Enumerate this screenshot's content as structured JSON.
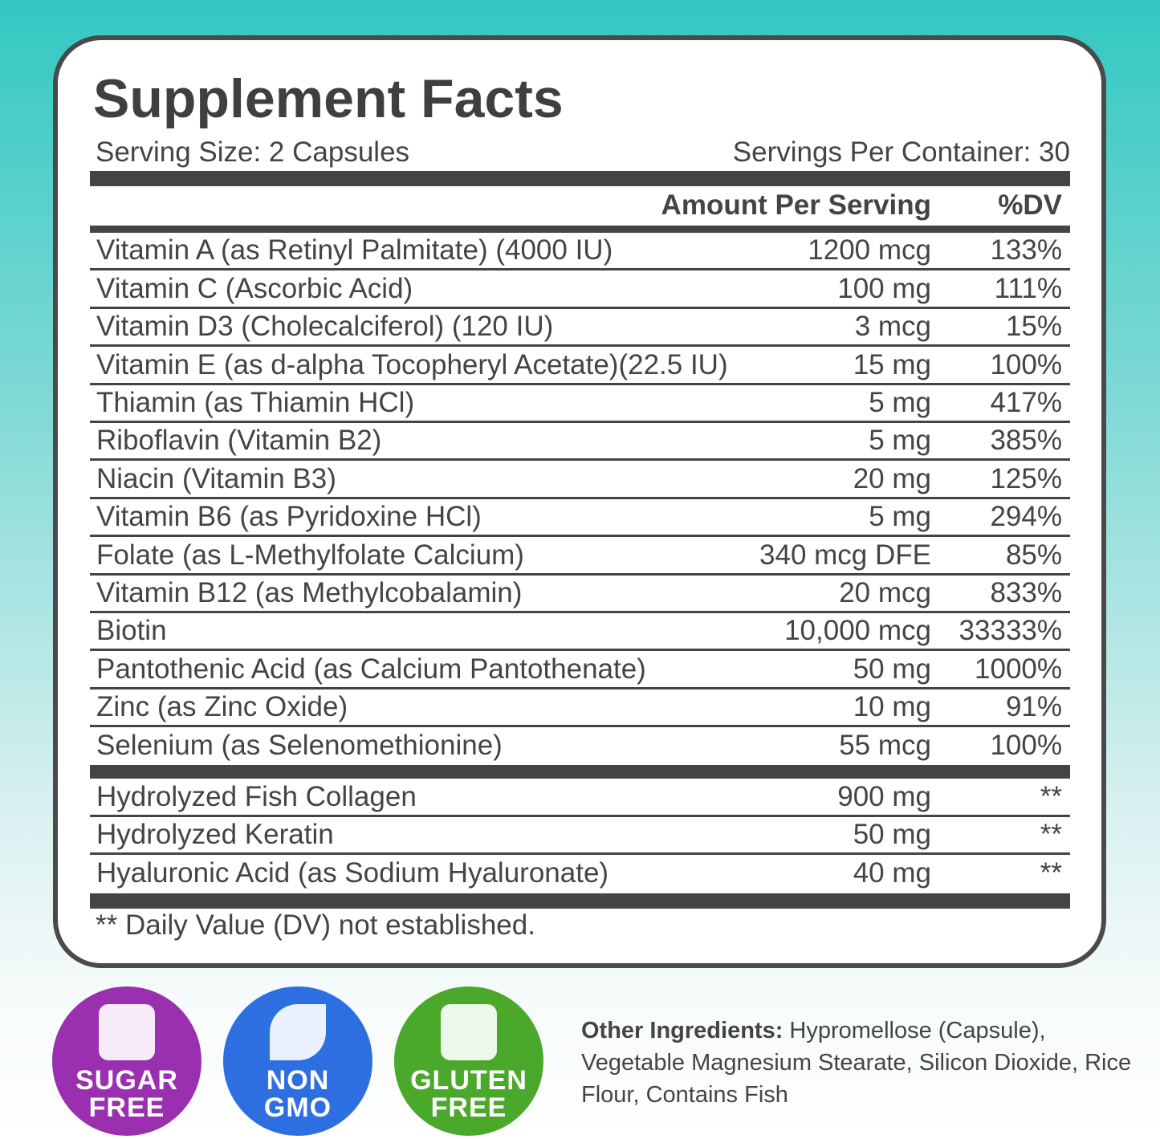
{
  "header": {
    "title": "Supplement Facts",
    "serving_size": "Serving Size: 2 Capsules",
    "servings_per_container": "Servings Per Container: 30"
  },
  "table": {
    "columns": [
      "Amount Per Serving",
      "%DV"
    ],
    "rows": [
      [
        "Vitamin A (as Retinyl Palmitate) (4000 IU)",
        "1200 mcg",
        "133%"
      ],
      [
        "Vitamin C (Ascorbic Acid)",
        "100 mg",
        "111%"
      ],
      [
        "Vitamin D3 (Cholecalciferol) (120 IU)",
        "3 mcg",
        "15%"
      ],
      [
        "Vitamin E (as d-alpha Tocopheryl Acetate)(22.5 IU)",
        "15 mg",
        "100%"
      ],
      [
        "Thiamin (as Thiamin HCl)",
        "5 mg",
        "417%"
      ],
      [
        "Riboflavin (Vitamin B2)",
        "5 mg",
        "385%"
      ],
      [
        "Niacin (Vitamin B3)",
        "20 mg",
        "125%"
      ],
      [
        "Vitamin B6 (as Pyridoxine HCl)",
        "5 mg",
        "294%"
      ],
      [
        "Folate (as L-Methylfolate Calcium)",
        "340 mcg DFE",
        "85%"
      ],
      [
        "Vitamin B12 (as Methylcobalamin)",
        "20 mcg",
        "833%"
      ],
      [
        "Biotin",
        "10,000 mcg",
        "33333%"
      ],
      [
        "Pantothenic Acid (as Calcium Pantothenate)",
        "50 mg",
        "1000%"
      ],
      [
        "Zinc (as Zinc Oxide)",
        "10 mg",
        "91%"
      ],
      [
        "Selenium (as Selenomethionine)",
        "55 mcg",
        "100%"
      ]
    ],
    "other_rows": [
      [
        "Hydrolyzed Fish Collagen",
        "900 mg",
        "**"
      ],
      [
        "Hydrolyzed Keratin",
        "50 mg",
        "**"
      ],
      [
        "Hyaluronic Acid (as Sodium Hyaluronate)",
        "40 mg",
        "**"
      ]
    ]
  },
  "footnote": "** Daily Value (DV) not established.",
  "badges": [
    {
      "line1": "SUGAR",
      "line2": "FREE",
      "color": "#9a2fb0"
    },
    {
      "line1": "NON",
      "line2": "GMO",
      "color": "#2d6ee0"
    },
    {
      "line1": "GLUTEN",
      "line2": "FREE",
      "color": "#4aa82a"
    }
  ],
  "other_ingredients": {
    "label": "Other Ingredients:",
    "text": "Hypromellose (Capsule), Vegetable Magnesium Stearate, Silicon Dioxide, Rice Flour, Contains Fish"
  }
}
